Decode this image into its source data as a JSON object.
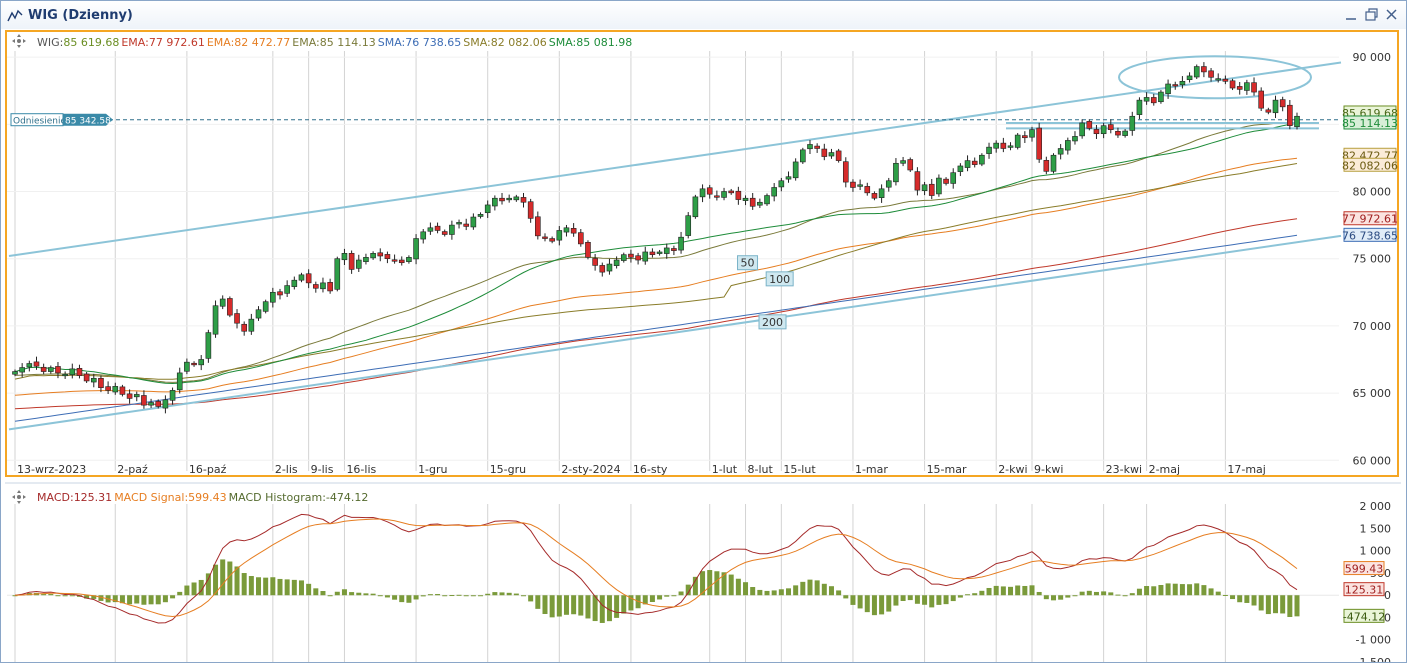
{
  "window": {
    "title": "WIG (Dzienny)",
    "buttons": [
      "restore-down",
      "maximize",
      "close"
    ]
  },
  "price_legend": [
    {
      "label": "WIG:",
      "value": "85 619.68",
      "color": "#555555",
      "value_color": "#6b8e23"
    },
    {
      "label": "EMA:",
      "value": "77 972.61",
      "color": "#c0392b",
      "value_color": "#c0392b"
    },
    {
      "label": "EMA:",
      "value": "82 472.77",
      "color": "#e67e22",
      "value_color": "#e67e22"
    },
    {
      "label": "EMA:",
      "value": "85 114.13",
      "color": "#7a7a3a",
      "value_color": "#7a7a3a"
    },
    {
      "label": "SMA:",
      "value": "76 738.65",
      "color": "#3d6db5",
      "value_color": "#3d6db5"
    },
    {
      "label": "SMA:",
      "value": "82 082.06",
      "color": "#8a7d2a",
      "value_color": "#8a7d2a"
    },
    {
      "label": "SMA:",
      "value": "85 081.98",
      "color": "#1e8c3a",
      "value_color": "#1e8c3a"
    }
  ],
  "macd_legend": [
    {
      "label": "MACD:",
      "value": "125.31",
      "color": "#a52a2a"
    },
    {
      "label": "MACD Signal:",
      "value": "599.43",
      "color": "#e67e22"
    },
    {
      "label": "MACD Histogram:",
      "value": "-474.12",
      "color": "#556b2f"
    }
  ],
  "reference": {
    "label": "Odniesienie",
    "value": "85 342.58"
  },
  "price_tags": [
    {
      "value": "85 619.68",
      "bg": "#eaf5d8",
      "border": "#6b8e23",
      "color": "#4a6a1a"
    },
    {
      "value": "85 114.13",
      "bg": "#d8efd8",
      "border": "#1e8c3a",
      "color": "#1e8c3a",
      "partial": true
    },
    {
      "value": "82 472.77",
      "bg": "#fbecd8",
      "border": "#b8a040",
      "color": "#6b5a10"
    },
    {
      "value": "82 082.06",
      "bg": "#fbecd8",
      "border": "#b8a040",
      "color": "#6b5a10",
      "partial": true
    },
    {
      "value": "77 972.61",
      "bg": "#fbe3e0",
      "border": "#c0392b",
      "color": "#a02020"
    },
    {
      "value": "76 738.65",
      "bg": "#e0ecf8",
      "border": "#3d6db5",
      "color": "#2a4a80"
    }
  ],
  "macd_tags": [
    {
      "value": "599.43",
      "bg": "#fbe3e0",
      "border": "#e67e22",
      "color": "#a02020"
    },
    {
      "value": "125.31",
      "bg": "#fbe3e0",
      "border": "#c0392b",
      "color": "#a02020"
    },
    {
      "value": "-474.12",
      "bg": "#eaf5d8",
      "border": "#6b8e23",
      "color": "#3a5a10"
    }
  ],
  "ma_labels": [
    "50",
    "100",
    "200"
  ],
  "chart_data": {
    "type": "candlestick",
    "y_axis": {
      "ticks": [
        60000,
        65000,
        70000,
        75000,
        80000,
        85000,
        90000
      ],
      "tick_labels": [
        "60 000",
        "65 000",
        "70 000",
        "75 000",
        "80 000",
        "85 000",
        "90 000"
      ],
      "range": [
        59200,
        91200
      ]
    },
    "x_axis": {
      "tick_labels": [
        "13-wrz-2023",
        "2-paź",
        "16-paź",
        "2-lis",
        "9-lis",
        "16-lis",
        "1-gru",
        "15-gru",
        "2-sty-2024",
        "16-sty",
        "1-lut",
        "8-lut",
        "15-lut",
        "1-mar",
        "15-mar",
        "2-kwi",
        "9-kwi",
        "23-kwi",
        "2-maj",
        "17-maj"
      ],
      "tick_index": [
        0,
        14,
        24,
        36,
        41,
        46,
        56,
        66,
        76,
        86,
        97,
        102,
        107,
        117,
        127,
        137,
        142,
        152,
        158,
        169
      ]
    },
    "close": [
      66600,
      66900,
      67200,
      67000,
      66600,
      66900,
      66500,
      66400,
      66800,
      66300,
      65900,
      66100,
      65400,
      65200,
      65500,
      64900,
      64600,
      64900,
      64100,
      64300,
      64000,
      64500,
      65200,
      66500,
      67300,
      67100,
      67500,
      69500,
      71500,
      72000,
      70800,
      70200,
      69600,
      70500,
      71200,
      71800,
      72500,
      72300,
      73000,
      73400,
      73800,
      73200,
      72800,
      73200,
      72600,
      75000,
      75400,
      74200,
      74900,
      75100,
      75400,
      75200,
      75000,
      74900,
      74700,
      75100,
      76500,
      77000,
      77300,
      77100,
      76800,
      77500,
      77700,
      77400,
      78100,
      78300,
      79000,
      79500,
      79300,
      79500,
      79600,
      79200,
      78000,
      76700,
      76500,
      76300,
      77100,
      77300,
      76900,
      76100,
      75100,
      74500,
      74000,
      74600,
      74900,
      75300,
      75100,
      74900,
      75500,
      75300,
      75500,
      75800,
      75600,
      76600,
      78200,
      79600,
      80200,
      79800,
      79600,
      80000,
      79900,
      79400,
      79500,
      78900,
      79200,
      79700,
      80300,
      80800,
      81100,
      82200,
      83100,
      83500,
      83200,
      82600,
      82900,
      82300,
      80700,
      80300,
      80500,
      79900,
      79500,
      80200,
      80800,
      82100,
      82300,
      81600,
      80100,
      80500,
      79700,
      81000,
      80600,
      81400,
      81900,
      82300,
      82000,
      82700,
      83300,
      83600,
      83200,
      83400,
      84200,
      84000,
      84600,
      82400,
      81500,
      82700,
      83200,
      83800,
      84100,
      85100,
      84700,
      84300,
      84900,
      84600,
      84200,
      84500,
      85600,
      86800,
      87000,
      86600,
      87400,
      88000,
      87900,
      88200,
      88600,
      89300,
      88900,
      88500,
      88400,
      88200,
      87700,
      87600,
      88100,
      87400,
      86200,
      85900,
      86800,
      86300,
      84900,
      85600
    ],
    "series": [
      {
        "name": "EMA",
        "color": "#c0392b",
        "last": 77972.61
      },
      {
        "name": "EMA",
        "color": "#e67e22",
        "last": 82472.77
      },
      {
        "name": "EMA",
        "color": "#7a7a3a",
        "last": 85114.13
      },
      {
        "name": "SMA",
        "color": "#3d6db5",
        "last": 76738.65
      },
      {
        "name": "SMA",
        "color": "#8a7d2a",
        "last": 82082.06
      },
      {
        "name": "SMA",
        "color": "#1e8c3a",
        "last": 85081.98
      }
    ],
    "macd": {
      "y_ticks": [
        -1500,
        -1000,
        -500,
        0,
        500,
        1000,
        1500,
        2000
      ],
      "y_tick_labels": [
        "-1 500",
        "-1 000",
        "-500",
        "0",
        "500",
        "1 000",
        "1 500",
        "2 000"
      ],
      "range": [
        -1500,
        2050
      ],
      "last": {
        "macd": 125.31,
        "signal": 599.43,
        "histogram": -474.12
      }
    }
  }
}
